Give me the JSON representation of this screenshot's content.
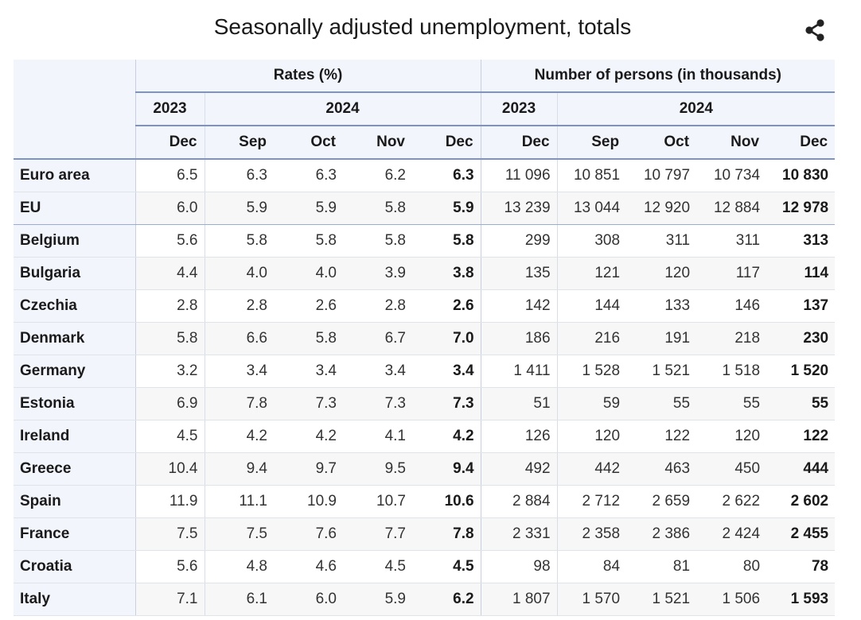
{
  "title": "Seasonally adjusted unemployment, totals",
  "share_icon": "share-icon",
  "headers": {
    "rates": "Rates (%)",
    "persons": "Number of persons (in thousands)",
    "year_2023": "2023",
    "year_2024": "2024",
    "rate_months": [
      "Dec",
      "Sep",
      "Oct",
      "Nov",
      "Dec"
    ],
    "persons_months": [
      "Dec",
      "Sep",
      "Oct",
      "Nov",
      "Dec"
    ]
  },
  "rows": [
    {
      "country": "Euro area",
      "rates": [
        "6.5",
        "6.3",
        "6.3",
        "6.2",
        "6.3"
      ],
      "persons": [
        "11 096",
        "10 851",
        "10 797",
        "10 734",
        "10 830"
      ]
    },
    {
      "country": "EU",
      "rates": [
        "6.0",
        "5.9",
        "5.9",
        "5.8",
        "5.9"
      ],
      "persons": [
        "13 239",
        "13 044",
        "12 920",
        "12 884",
        "12 978"
      ]
    },
    {
      "country": "Belgium",
      "rates": [
        "5.6",
        "5.8",
        "5.8",
        "5.8",
        "5.8"
      ],
      "persons": [
        "299",
        "308",
        "311",
        "311",
        "313"
      ]
    },
    {
      "country": "Bulgaria",
      "rates": [
        "4.4",
        "4.0",
        "4.0",
        "3.9",
        "3.8"
      ],
      "persons": [
        "135",
        "121",
        "120",
        "117",
        "114"
      ]
    },
    {
      "country": "Czechia",
      "rates": [
        "2.8",
        "2.8",
        "2.6",
        "2.8",
        "2.6"
      ],
      "persons": [
        "142",
        "144",
        "133",
        "146",
        "137"
      ]
    },
    {
      "country": "Denmark",
      "rates": [
        "5.8",
        "6.6",
        "5.8",
        "6.7",
        "7.0"
      ],
      "persons": [
        "186",
        "216",
        "191",
        "218",
        "230"
      ]
    },
    {
      "country": "Germany",
      "rates": [
        "3.2",
        "3.4",
        "3.4",
        "3.4",
        "3.4"
      ],
      "persons": [
        "1 411",
        "1 528",
        "1 521",
        "1 518",
        "1 520"
      ]
    },
    {
      "country": "Estonia",
      "rates": [
        "6.9",
        "7.8",
        "7.3",
        "7.3",
        "7.3"
      ],
      "persons": [
        "51",
        "59",
        "55",
        "55",
        "55"
      ]
    },
    {
      "country": "Ireland",
      "rates": [
        "4.5",
        "4.2",
        "4.2",
        "4.1",
        "4.2"
      ],
      "persons": [
        "126",
        "120",
        "122",
        "120",
        "122"
      ]
    },
    {
      "country": "Greece",
      "rates": [
        "10.4",
        "9.4",
        "9.7",
        "9.5",
        "9.4"
      ],
      "persons": [
        "492",
        "442",
        "463",
        "450",
        "444"
      ]
    },
    {
      "country": "Spain",
      "rates": [
        "11.9",
        "11.1",
        "10.9",
        "10.7",
        "10.6"
      ],
      "persons": [
        "2 884",
        "2 712",
        "2 659",
        "2 622",
        "2 602"
      ]
    },
    {
      "country": "France",
      "rates": [
        "7.5",
        "7.5",
        "7.6",
        "7.7",
        "7.8"
      ],
      "persons": [
        "2 331",
        "2 358",
        "2 386",
        "2 424",
        "2 455"
      ]
    },
    {
      "country": "Croatia",
      "rates": [
        "5.6",
        "4.8",
        "4.6",
        "4.5",
        "4.5"
      ],
      "persons": [
        "98",
        "84",
        "81",
        "80",
        "78"
      ]
    },
    {
      "country": "Italy",
      "rates": [
        "7.1",
        "6.1",
        "6.0",
        "5.9",
        "6.2"
      ],
      "persons": [
        "1 807",
        "1 570",
        "1 521",
        "1 506",
        "1 593"
      ]
    }
  ]
}
